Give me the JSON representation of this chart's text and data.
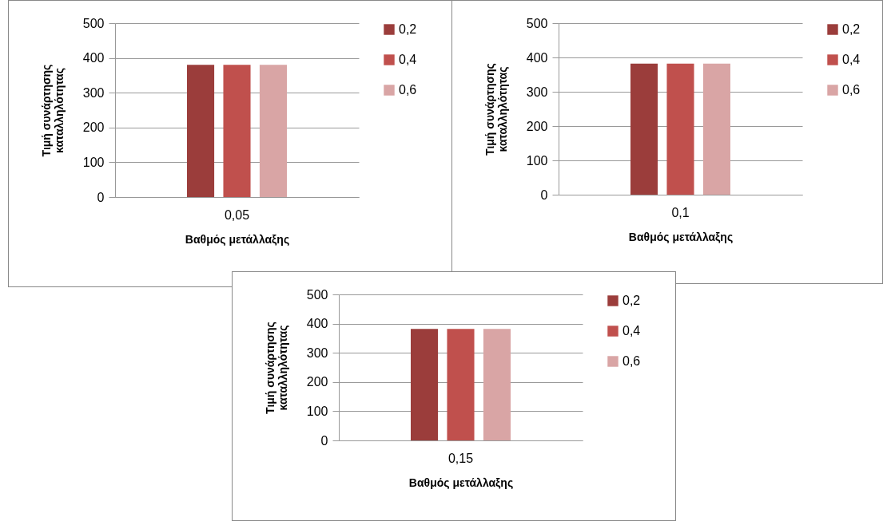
{
  "chart_data": [
    {
      "type": "bar",
      "categories": [
        "0,05"
      ],
      "xlabel": "Βαθμός μετάλλαξης",
      "ylabel": "Τιμή συνάρτησης καταλληλότητας",
      "ylim": [
        0,
        500
      ],
      "yticks": [
        0,
        100,
        200,
        300,
        400,
        500
      ],
      "grid": "y",
      "legend": "right",
      "series": [
        {
          "name": "0,2",
          "color": "#9b3d3b",
          "values": [
            380
          ]
        },
        {
          "name": "0,4",
          "color": "#c0504d",
          "values": [
            380
          ]
        },
        {
          "name": "0,6",
          "color": "#d9a5a5",
          "values": [
            380
          ]
        }
      ]
    },
    {
      "type": "bar",
      "categories": [
        "0,1"
      ],
      "xlabel": "Βαθμός μετάλλαξης",
      "ylabel": "Τιμή συνάρτησης καταλληλότητας",
      "ylim": [
        0,
        500
      ],
      "yticks": [
        0,
        100,
        200,
        300,
        400,
        500
      ],
      "grid": "y",
      "legend": "right",
      "series": [
        {
          "name": "0,2",
          "color": "#9b3d3b",
          "values": [
            382
          ]
        },
        {
          "name": "0,4",
          "color": "#c0504d",
          "values": [
            382
          ]
        },
        {
          "name": "0,6",
          "color": "#d9a5a5",
          "values": [
            382
          ]
        }
      ]
    },
    {
      "type": "bar",
      "categories": [
        "0,15"
      ],
      "xlabel": "Βαθμός μετάλλαξης",
      "ylabel": "Τιμή συνάρτησης καταλληλότητας",
      "ylim": [
        0,
        500
      ],
      "yticks": [
        0,
        100,
        200,
        300,
        400,
        500
      ],
      "grid": "y",
      "legend": "right",
      "series": [
        {
          "name": "0,2",
          "color": "#9b3d3b",
          "values": [
            382
          ]
        },
        {
          "name": "0,4",
          "color": "#c0504d",
          "values": [
            382
          ]
        },
        {
          "name": "0,6",
          "color": "#d9a5a5",
          "values": [
            382
          ]
        }
      ]
    }
  ]
}
